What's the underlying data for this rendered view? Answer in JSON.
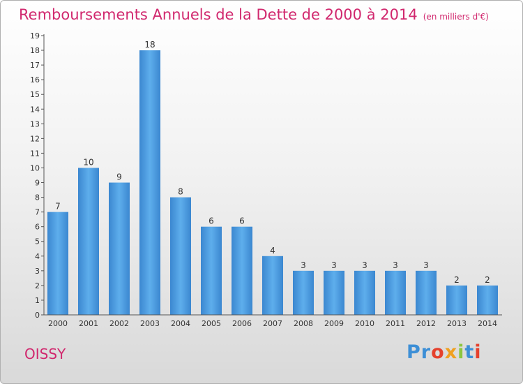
{
  "chart_data": {
    "type": "bar",
    "title": "Remboursements Annuels de la Dette de 2000 à 2014",
    "subtitle": "(en milliers d'€)",
    "categories": [
      "2000",
      "2001",
      "2002",
      "2003",
      "2004",
      "2005",
      "2006",
      "2007",
      "2008",
      "2009",
      "2010",
      "2011",
      "2012",
      "2013",
      "2014"
    ],
    "values": [
      7,
      10,
      9,
      18,
      8,
      6,
      6,
      4,
      3,
      3,
      3,
      3,
      3,
      2,
      2
    ],
    "ylim": [
      0,
      19
    ],
    "yticks": [
      0,
      1,
      2,
      3,
      4,
      5,
      6,
      7,
      8,
      9,
      10,
      11,
      12,
      13,
      14,
      15,
      16,
      17,
      18,
      19
    ],
    "xlabel": "",
    "ylabel": "",
    "grid": false,
    "bar_color": "#4a9be2",
    "title_color": "#d1286e"
  },
  "footer": {
    "city": "OISSY",
    "logo_letters": [
      {
        "ch": "P",
        "color": "#3d8fd6"
      },
      {
        "ch": "r",
        "color": "#3d8fd6"
      },
      {
        "ch": "o",
        "color": "#e5412d"
      },
      {
        "ch": "x",
        "color": "#f0a020"
      },
      {
        "ch": "i",
        "color": "#8cc63f"
      },
      {
        "ch": "t",
        "color": "#3d8fd6"
      },
      {
        "ch": "i",
        "color": "#e5412d"
      }
    ]
  }
}
